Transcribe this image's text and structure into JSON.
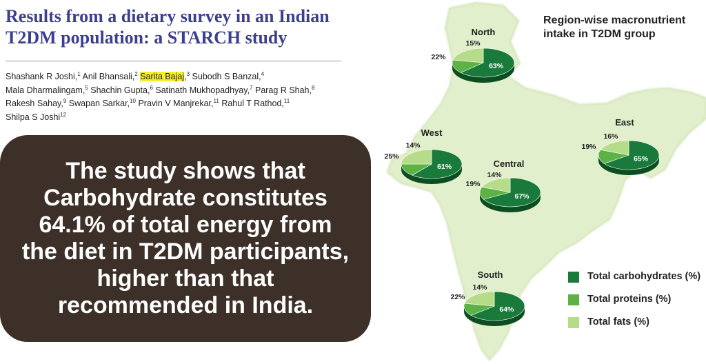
{
  "header": {
    "title_lines": [
      "Results from a dietary survey in an Indian",
      "T2DM population: a STARCH study"
    ],
    "authors": [
      {
        "name": "Shashank R Joshi,",
        "sup": "1"
      },
      {
        "name": "Anil Bhansali,",
        "sup": "2"
      },
      {
        "name": "Sarita Bajaj",
        "sup": "3",
        "after": ",",
        "highlight": true
      },
      {
        "name": "Subodh S Banzal,",
        "sup": "4"
      },
      {
        "name": "Mala Dharmalingam,",
        "sup": "5"
      },
      {
        "name": "Shachin Gupta,",
        "sup": "6"
      },
      {
        "name": "Satinath Mukhopadhyay,",
        "sup": "7"
      },
      {
        "name": "Parag R Shah,",
        "sup": "8"
      },
      {
        "name": "Rakesh Sahay,",
        "sup": "9"
      },
      {
        "name": "Swapan Sarkar,",
        "sup": "10"
      },
      {
        "name": "Pravin V Manjrekar,",
        "sup": "11"
      },
      {
        "name": "Rahul T Rathod,",
        "sup": "11"
      },
      {
        "name": "Shilpa S Joshi",
        "sup": "12"
      }
    ]
  },
  "callout": {
    "lines": [
      "The study shows that",
      "Carbohydrate  constitutes",
      "64.1% of total energy from",
      "the diet in T2DM participants,",
      "higher than that",
      "recommended in India."
    ]
  },
  "chart_data": {
    "type": "pie",
    "title_lines": [
      "Region-wise macronutrient",
      "intake in T2DM group"
    ],
    "series_names": [
      "Total carbohydrates (%)",
      "Total proteins (%)",
      "Total fats (%)"
    ],
    "colors": [
      "#1a7a3c",
      "#5cb245",
      "#b6dc8a"
    ],
    "regions": [
      {
        "name": "North",
        "values": [
          63,
          15,
          22
        ],
        "labels": [
          "63%",
          "15%",
          "22%"
        ]
      },
      {
        "name": "West",
        "values": [
          61,
          14,
          25
        ],
        "labels": [
          "61%",
          "14%",
          "25%"
        ]
      },
      {
        "name": "Central",
        "values": [
          67,
          14,
          19
        ],
        "labels": [
          "67%",
          "14%",
          "19%"
        ]
      },
      {
        "name": "East",
        "values": [
          65,
          16,
          19
        ],
        "labels": [
          "65%",
          "16%",
          "19%"
        ]
      },
      {
        "name": "South",
        "values": [
          64,
          14,
          22
        ],
        "labels": [
          "64%",
          "14%",
          "22%"
        ]
      }
    ],
    "legend_placement": "bottom-right"
  }
}
